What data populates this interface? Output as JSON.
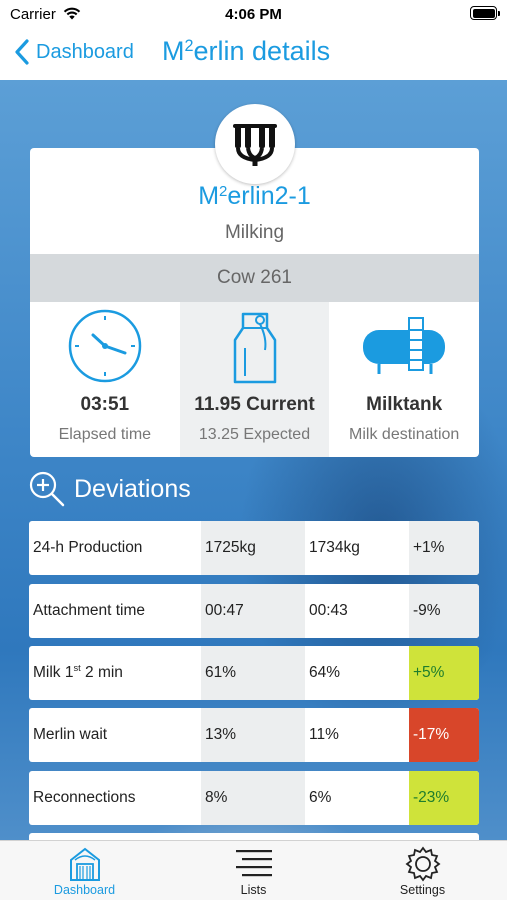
{
  "status_bar": {
    "carrier": "Carrier",
    "time": "4:06 PM"
  },
  "nav": {
    "back_label": "Dashboard",
    "title_prefix": "M",
    "title_sup": "2",
    "title_rest": "erlin details"
  },
  "machine": {
    "name_prefix": "M",
    "name_sup": "2",
    "name_rest": "erlin2-1",
    "state": "Milking",
    "cow": "Cow 261",
    "elapsed_value": "03:51",
    "elapsed_label": "Elapsed time",
    "yield_value": "11.95 Current",
    "yield_label": "13.25 Expected",
    "destination_value": "Milktank",
    "destination_label": "Milk destination"
  },
  "deviations": {
    "title": "Deviations",
    "rows": [
      {
        "name": "24-h Production",
        "v1": "1725kg",
        "v2": "1734kg",
        "change": "+1%",
        "status": "neutral"
      },
      {
        "name": "Attachment time",
        "v1": "00:47",
        "v2": "00:43",
        "change": "-9%",
        "status": "neutral"
      },
      {
        "name_prefix": "Milk 1",
        "name_sup": "st",
        "name_rest": " 2 min",
        "v1": "61%",
        "v2": "64%",
        "change": "+5%",
        "status": "good"
      },
      {
        "name": "Merlin wait",
        "v1": "13%",
        "v2": "11%",
        "change": "-17%",
        "status": "bad"
      },
      {
        "name": "Reconnections",
        "v1": "8%",
        "v2": "6%",
        "change": "-23%",
        "status": "good"
      }
    ]
  },
  "tabs": [
    {
      "label": "Dashboard",
      "icon": "barn-icon",
      "active": true
    },
    {
      "label": "Lists",
      "icon": "list-icon",
      "active": false
    },
    {
      "label": "Settings",
      "icon": "gear-icon",
      "active": false
    }
  ],
  "colors": {
    "accent": "#1b9be0",
    "good": "#cfe33a",
    "bad": "#d8462a"
  }
}
